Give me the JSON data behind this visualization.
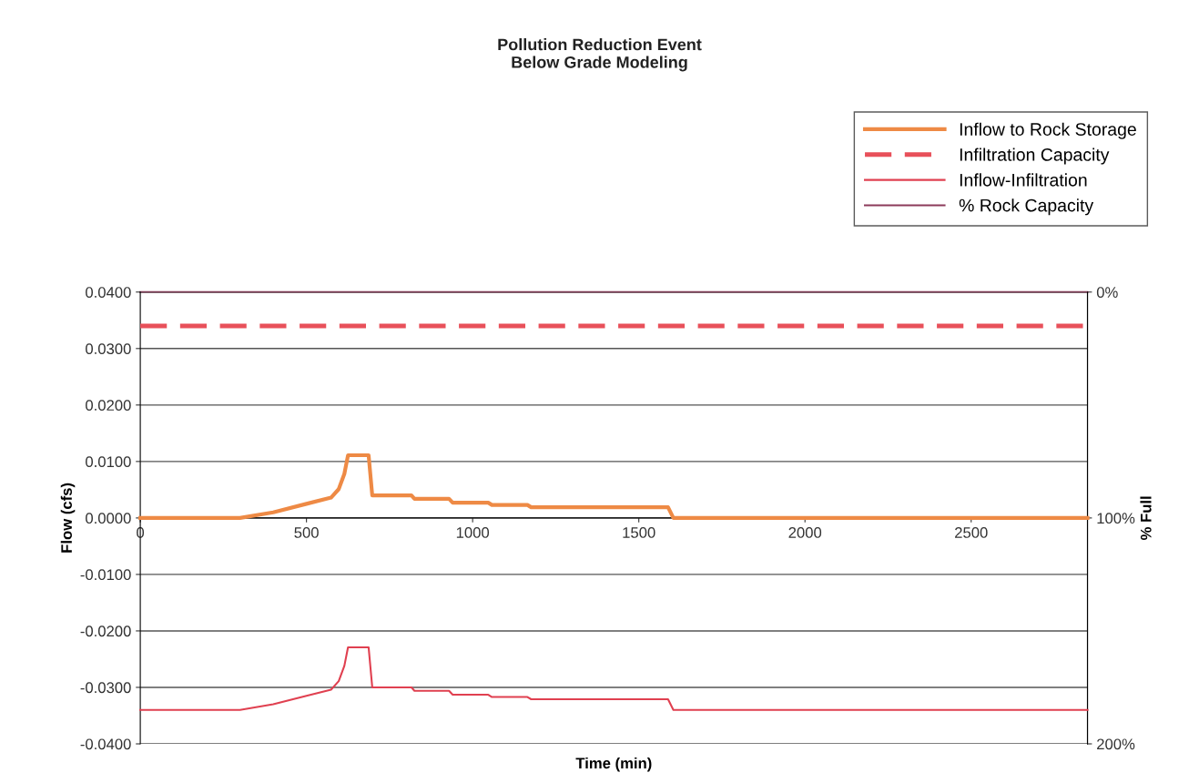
{
  "chart_data": {
    "type": "line",
    "title": "Pollution Reduction Event\nBelow Grade Modeling",
    "xlabel": "Time (min)",
    "ylabel": "Flow (cfs)",
    "y2label": "% Full",
    "xlim": [
      0,
      2850
    ],
    "xticks": [
      0,
      500,
      1000,
      1500,
      2000,
      2500
    ],
    "ylim": [
      -0.04,
      0.04
    ],
    "yticks": [
      {
        "value": -0.04,
        "label": "-0.0400"
      },
      {
        "value": -0.03,
        "label": "-0.0300"
      },
      {
        "value": -0.02,
        "label": "-0.0200"
      },
      {
        "value": -0.01,
        "label": "-0.0100"
      },
      {
        "value": 0,
        "label": "0.0000"
      },
      {
        "value": 0.01,
        "label": "0.0100"
      },
      {
        "value": 0.02,
        "label": "0.0200"
      },
      {
        "value": 0.03,
        "label": "0.0300"
      },
      {
        "value": 0.04,
        "label": "0.0400"
      }
    ],
    "y2lim": [
      200,
      0
    ],
    "y2ticks": [
      {
        "value": 0,
        "label": "0%"
      },
      {
        "value": 100,
        "label": "100%"
      },
      {
        "value": 200,
        "label": "200%"
      }
    ],
    "grid": "y",
    "legend": "top right",
    "marker": "none",
    "series": [
      {
        "name": "Inflow to Rock Storage",
        "color": "#ee8a45",
        "line_style": "solid",
        "x": [
          0,
          300,
          400,
          500,
          574,
          597,
          614,
          625,
          687,
          698,
          816,
          825,
          929,
          940,
          1047,
          1058,
          1165,
          1176,
          1588,
          1604,
          2850
        ],
        "values": [
          0,
          0,
          0.001,
          0.0025,
          0.0036,
          0.0051,
          0.0078,
          0.0111,
          0.0111,
          0.004,
          0.004,
          0.0034,
          0.0034,
          0.0027,
          0.0027,
          0.0023,
          0.0023,
          0.0019,
          0.0019,
          0,
          0
        ]
      },
      {
        "name": "Infiltration Capacity",
        "color": "#e8505a",
        "line_style": "dashed",
        "x": [
          0,
          2850
        ],
        "values": [
          0.034,
          0.034
        ]
      },
      {
        "name": "Inflow-Infiltration",
        "color": "#e04050",
        "line_style": "solid",
        "x": [
          0,
          300,
          400,
          500,
          574,
          597,
          614,
          625,
          687,
          698,
          816,
          825,
          929,
          940,
          1047,
          1058,
          1165,
          1176,
          1588,
          1604,
          2850
        ],
        "values": [
          -0.034,
          -0.034,
          -0.033,
          -0.0315,
          -0.0304,
          -0.0289,
          -0.0262,
          -0.0229,
          -0.0229,
          -0.03,
          -0.03,
          -0.0306,
          -0.0306,
          -0.0313,
          -0.0313,
          -0.0317,
          -0.0317,
          -0.0321,
          -0.0321,
          -0.034,
          -0.034
        ]
      },
      {
        "name": "% Rock Capacity",
        "color": "#8c3a5a",
        "line_style": "solid",
        "axis": "y2",
        "x": [
          0,
          2850
        ],
        "values": [
          0,
          0
        ]
      }
    ]
  }
}
